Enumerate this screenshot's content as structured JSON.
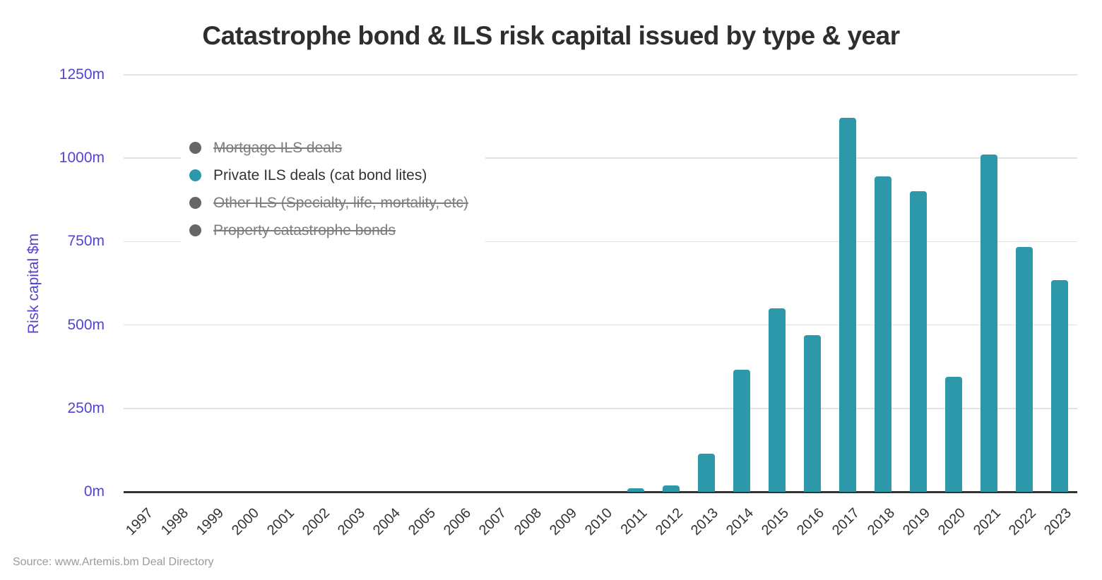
{
  "title": "Catastrophe bond & ILS risk capital issued by type & year",
  "source_note": "Source: www.Artemis.bm Deal Directory",
  "legend": {
    "items": [
      {
        "label": "Mortgage ILS deals",
        "color": "#666666",
        "active": false
      },
      {
        "label": "Private ILS deals (cat bond lites)",
        "color": "#2d98a9",
        "active": true
      },
      {
        "label": "Other ILS (Specialty, life, mortality, etc)",
        "color": "#666666",
        "active": false
      },
      {
        "label": "Property catastrophe bonds",
        "color": "#666666",
        "active": false
      }
    ]
  },
  "chart_data": {
    "type": "bar",
    "title": "Catastrophe bond & ILS risk capital issued by type & year",
    "xlabel": "",
    "ylabel": "Risk capital $m",
    "ylim": [
      0,
      1250
    ],
    "yticks": [
      0,
      250,
      500,
      750,
      1000,
      1250
    ],
    "ytick_labels": [
      "0m",
      "250m",
      "500m",
      "750m",
      "1000m",
      "1250m"
    ],
    "grid": true,
    "legend_position": "inside-top-left",
    "categories": [
      "1997",
      "1998",
      "1999",
      "2000",
      "2001",
      "2002",
      "2003",
      "2004",
      "2005",
      "2006",
      "2007",
      "2008",
      "2009",
      "2010",
      "2011",
      "2012",
      "2013",
      "2014",
      "2015",
      "2016",
      "2017",
      "2018",
      "2019",
      "2020",
      "2021",
      "2022",
      "2023"
    ],
    "series": [
      {
        "name": "Private ILS deals (cat bond lites)",
        "color": "#2d98a9",
        "values": [
          0,
          0,
          0,
          0,
          0,
          0,
          0,
          0,
          0,
          0,
          0,
          0,
          0,
          0,
          10,
          20,
          115,
          365,
          550,
          470,
          1120,
          945,
          900,
          345,
          1010,
          735,
          635
        ]
      }
    ]
  },
  "colors": {
    "bar": "#2d98a9",
    "axis_label": "#5144d3",
    "grid_line": "#e2e2e2",
    "baseline": "#333333",
    "title_text": "#2e2e2e",
    "x_tick_text": "#333333",
    "legend_disabled_text": "#7d7d7d",
    "legend_disabled_dot": "#666666",
    "source_text": "#9b9b9b"
  }
}
